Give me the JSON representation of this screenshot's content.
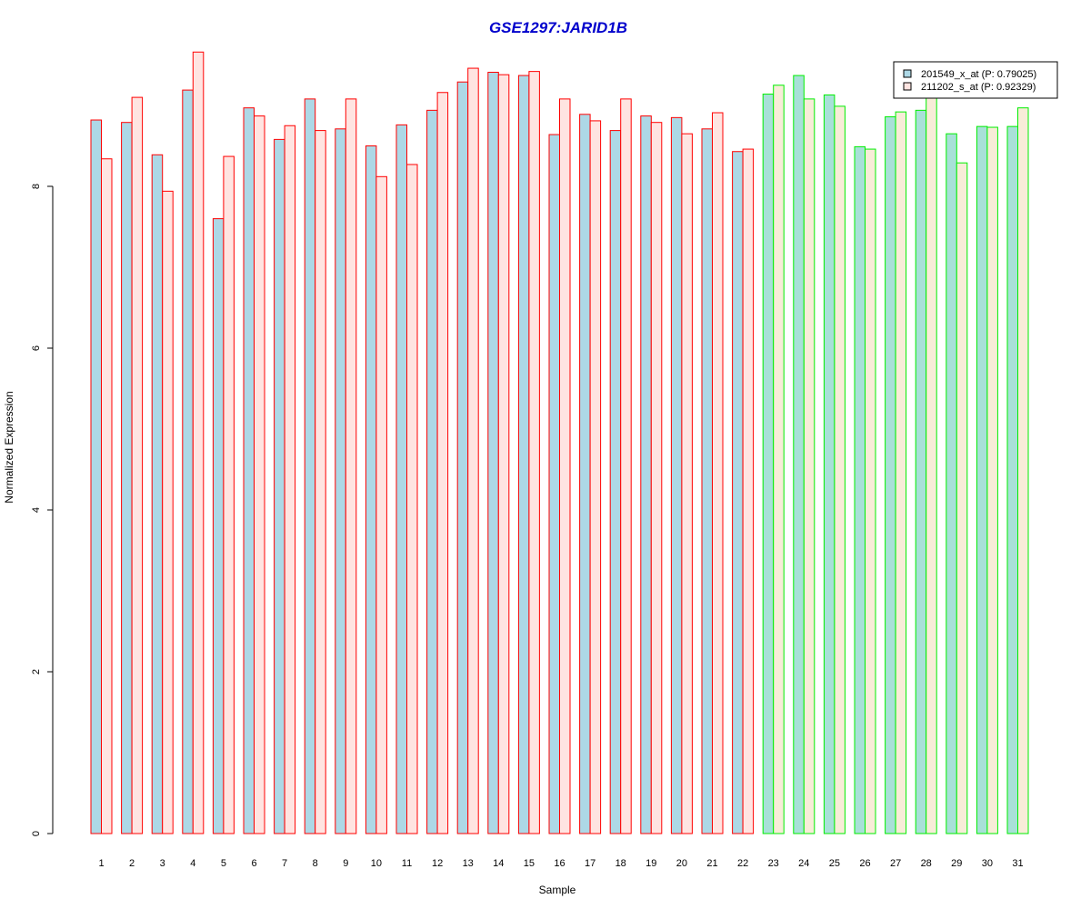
{
  "chart_data": {
    "type": "bar",
    "title": "GSE1297:JARID1B",
    "xlabel": "Sample",
    "ylabel": "Normalized Expression",
    "ylim": [
      0,
      9.8
    ],
    "yticks": [
      0,
      2,
      4,
      6,
      8
    ],
    "categories": [
      "1",
      "2",
      "3",
      "4",
      "5",
      "6",
      "7",
      "8",
      "9",
      "10",
      "11",
      "12",
      "13",
      "14",
      "15",
      "16",
      "17",
      "18",
      "19",
      "20",
      "21",
      "22",
      "23",
      "24",
      "25",
      "26",
      "27",
      "28",
      "29",
      "30",
      "31"
    ],
    "series": [
      {
        "name": "201549_x_at (P: 0.79025)",
        "values": [
          8.82,
          8.79,
          8.39,
          9.19,
          7.6,
          8.97,
          8.58,
          9.08,
          8.71,
          8.5,
          8.76,
          8.94,
          9.29,
          9.41,
          9.37,
          8.64,
          8.89,
          8.69,
          8.87,
          8.85,
          8.71,
          8.43,
          9.14,
          9.37,
          9.13,
          8.49,
          8.86,
          8.94,
          8.65,
          8.74,
          8.74
        ]
      },
      {
        "name": "211202_s_at (P: 0.92329)",
        "values": [
          8.34,
          9.1,
          7.94,
          9.66,
          8.37,
          8.87,
          8.75,
          8.69,
          9.08,
          8.12,
          8.27,
          9.16,
          9.46,
          9.38,
          9.42,
          9.08,
          8.81,
          9.08,
          8.79,
          8.65,
          8.91,
          8.46,
          9.25,
          9.08,
          8.99,
          8.46,
          8.92,
          9.13,
          8.29,
          8.73,
          8.97
        ]
      }
    ],
    "groups": [
      {
        "samples": [
          1,
          22
        ],
        "border_color": "#ff0000",
        "fills": [
          "#add8e6",
          "#ffe4e1"
        ]
      },
      {
        "samples": [
          23,
          31
        ],
        "border_color": "#00ee00",
        "fills": [
          "#a8e0d8",
          "#f8ecd8"
        ]
      }
    ],
    "legend": {
      "placement": "top-right",
      "border_color": "#000000",
      "entry_border_color": "#000000"
    },
    "title_color": "#0000cc",
    "grid": false
  }
}
